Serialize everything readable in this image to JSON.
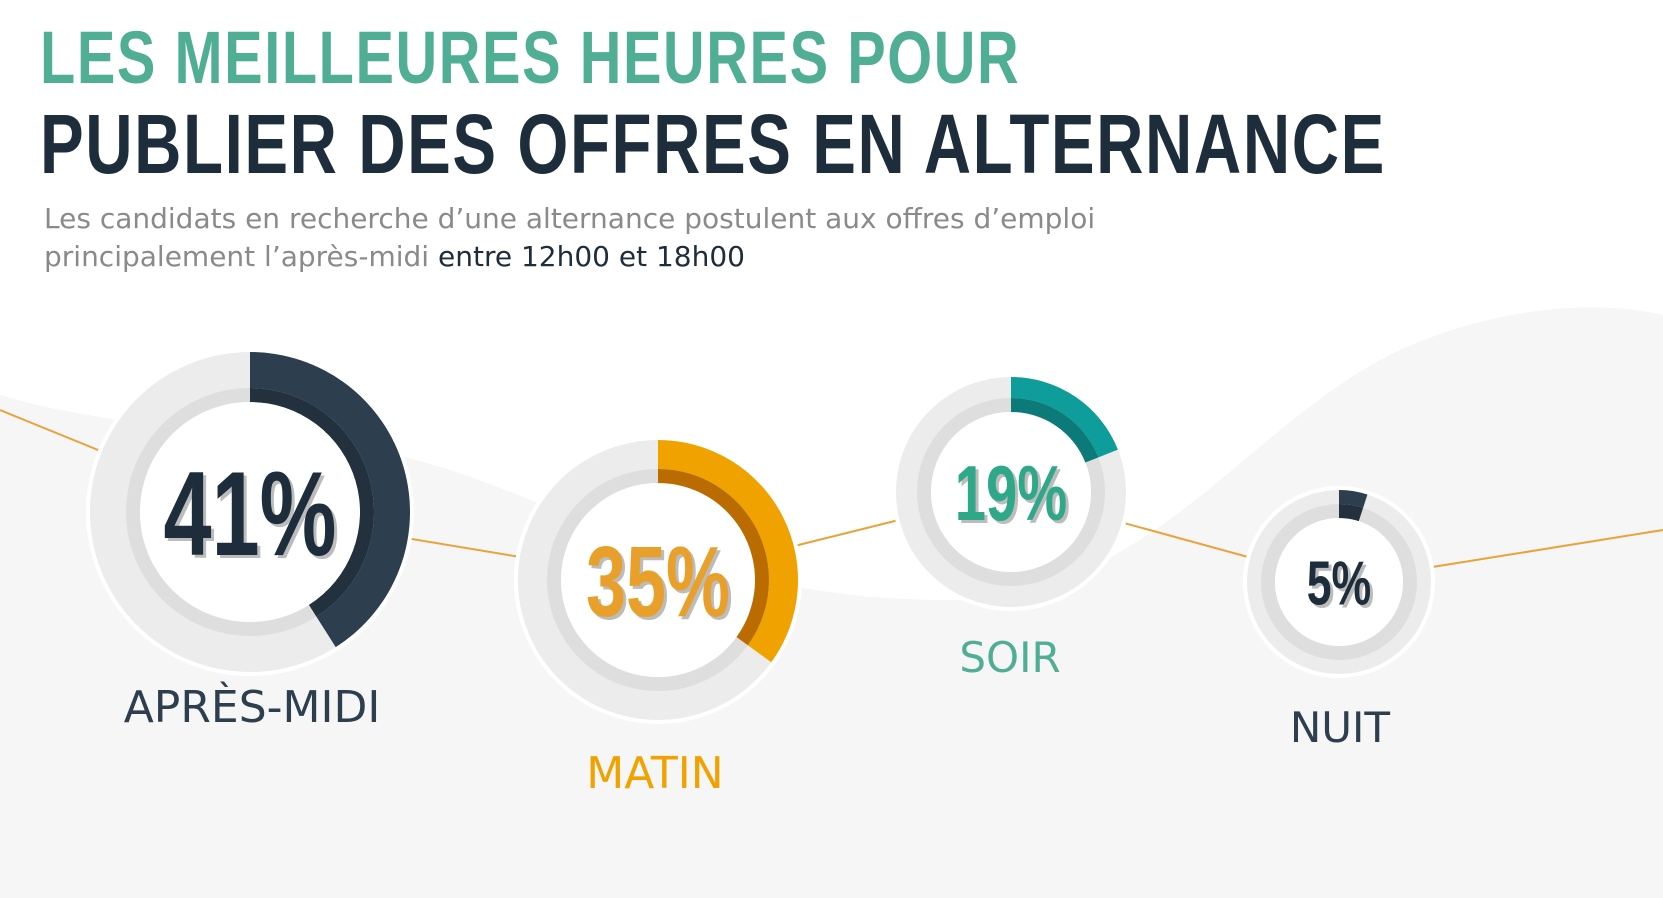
{
  "title": {
    "line1": "LES MEILLEURES HEURES POUR",
    "line2": "PUBLIER DES OFFRES EN ALTERNANCE"
  },
  "subtitle": {
    "text": "Les candidats en recherche d’une alternance postulent aux offres d’emploi principalement l’après-midi",
    "highlight": "entre 12h00 et 18h00"
  },
  "colors": {
    "title_green": "#4fae93",
    "title_dark": "#1e2d3b",
    "dark": "#2d3e4f",
    "orange": "#f0a300",
    "teal": "#0e9d9a",
    "connector": "#e8a33a",
    "track": "#e6e6e6"
  },
  "chart_data": {
    "type": "donut",
    "categories": [
      "APRÈS-MIDI",
      "MATIN",
      "SOIR",
      "NUIT"
    ],
    "values": [
      41,
      35,
      19,
      5
    ],
    "labels": [
      "41%",
      "35%",
      "19%",
      "5%"
    ],
    "unit": "%"
  }
}
